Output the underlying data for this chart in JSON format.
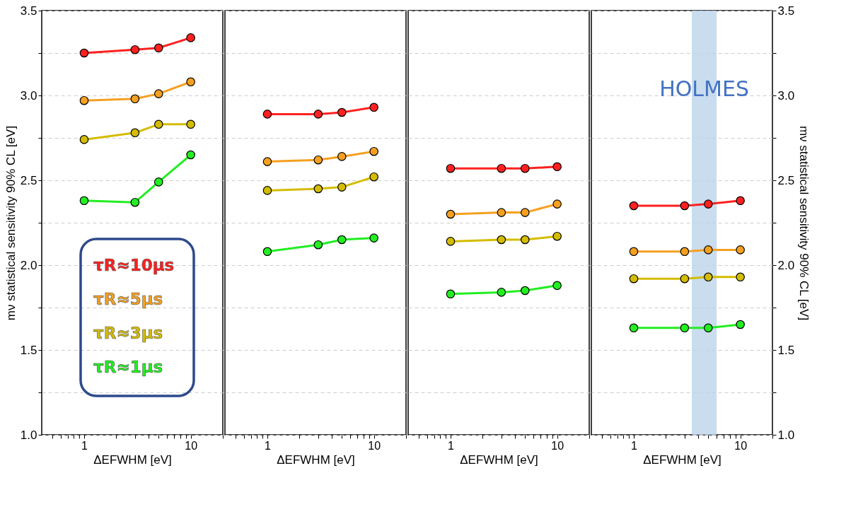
{
  "chart_data": [
    {
      "type": "line",
      "xlabel": "ΔEFWHM [eV]",
      "ylabel": "mν statistical sensitivity 90% CL [eV]",
      "x": [
        1,
        3,
        5,
        10
      ],
      "xlim": [
        0.4,
        20
      ],
      "log": "x",
      "xticks": [
        {
          "value": 0.5,
          "label": null
        },
        {
          "value": 0.6,
          "label": null
        },
        {
          "value": 0.7,
          "label": null
        },
        {
          "value": 0.8,
          "label": null
        },
        {
          "value": 0.9,
          "label": null
        },
        1,
        {
          "value": 2,
          "label": null
        },
        {
          "value": 3,
          "label": null
        },
        {
          "value": 4,
          "label": null
        },
        {
          "value": 5,
          "label": null
        },
        {
          "value": 6,
          "label": null
        },
        {
          "value": 7,
          "label": null
        },
        {
          "value": 8,
          "label": null
        },
        {
          "value": 9,
          "label": null
        },
        10,
        {
          "value": 20,
          "label": null
        }
      ],
      "ylim": [
        1.0,
        3.5
      ],
      "yticks": [
        {
          "value": 1.0,
          "label": "1.0"
        },
        {
          "value": 1.25,
          "label": null
        },
        1.5,
        {
          "value": 1.75,
          "label": null
        },
        {
          "value": 2.0,
          "label": "2.0"
        },
        {
          "value": 2.25,
          "label": null
        },
        2.5,
        {
          "value": 2.75,
          "label": null
        },
        {
          "value": 3.0,
          "label": "3.0"
        },
        {
          "value": 3.25,
          "label": null
        },
        3.5
      ],
      "grid": "y",
      "marker": "circle",
      "line_style": "solid",
      "legend": "bottom left",
      "series": [
        {
          "name": "τR≈10μs",
          "color": "#ff2020",
          "values": [
            3.25,
            3.27,
            3.28,
            3.34
          ]
        },
        {
          "name": "τR≈5μs",
          "color": "#f5a020",
          "values": [
            2.97,
            2.98,
            3.01,
            3.08
          ]
        },
        {
          "name": "τR≈3μs",
          "color": "#d4bc00",
          "values": [
            2.74,
            2.78,
            2.83,
            2.83
          ]
        },
        {
          "name": "τR≈1μs",
          "color": "#22ee22",
          "values": [
            2.38,
            2.37,
            2.49,
            2.65
          ]
        }
      ]
    },
    {
      "type": "line",
      "xlabel": "ΔEFWHM [eV]",
      "x": [
        1,
        3,
        5,
        10
      ],
      "xlim": [
        0.4,
        20
      ],
      "log": "x",
      "xticks": [
        {
          "value": 0.5,
          "label": null
        },
        {
          "value": 0.6,
          "label": null
        },
        {
          "value": 0.7,
          "label": null
        },
        {
          "value": 0.8,
          "label": null
        },
        {
          "value": 0.9,
          "label": null
        },
        1,
        {
          "value": 2,
          "label": null
        },
        {
          "value": 3,
          "label": null
        },
        {
          "value": 4,
          "label": null
        },
        {
          "value": 5,
          "label": null
        },
        {
          "value": 6,
          "label": null
        },
        {
          "value": 7,
          "label": null
        },
        {
          "value": 8,
          "label": null
        },
        {
          "value": 9,
          "label": null
        },
        10,
        {
          "value": 20,
          "label": null
        }
      ],
      "ylim": [
        1.0,
        3.5
      ],
      "yticks": [
        1.0,
        1.25,
        1.5,
        1.75,
        2.0,
        2.25,
        2.5,
        2.75,
        3.0,
        3.25,
        3.5
      ],
      "tick_labels": "x",
      "grid": "y",
      "marker": "circle",
      "line_style": "solid",
      "series": [
        {
          "color": "#ff2020",
          "values": [
            2.89,
            2.89,
            2.9,
            2.93
          ]
        },
        {
          "color": "#f5a020",
          "values": [
            2.61,
            2.62,
            2.64,
            2.67
          ]
        },
        {
          "color": "#d4bc00",
          "values": [
            2.44,
            2.45,
            2.46,
            2.52
          ]
        },
        {
          "color": "#22ee22",
          "values": [
            2.08,
            2.12,
            2.15,
            2.16
          ]
        }
      ]
    },
    {
      "type": "line",
      "xlabel": "ΔEFWHM [eV]",
      "x": [
        1,
        3,
        5,
        10
      ],
      "xlim": [
        0.4,
        20
      ],
      "log": "x",
      "xticks": [
        {
          "value": 0.5,
          "label": null
        },
        {
          "value": 0.6,
          "label": null
        },
        {
          "value": 0.7,
          "label": null
        },
        {
          "value": 0.8,
          "label": null
        },
        {
          "value": 0.9,
          "label": null
        },
        1,
        {
          "value": 2,
          "label": null
        },
        {
          "value": 3,
          "label": null
        },
        {
          "value": 4,
          "label": null
        },
        {
          "value": 5,
          "label": null
        },
        {
          "value": 6,
          "label": null
        },
        {
          "value": 7,
          "label": null
        },
        {
          "value": 8,
          "label": null
        },
        {
          "value": 9,
          "label": null
        },
        10,
        {
          "value": 20,
          "label": null
        }
      ],
      "ylim": [
        1.0,
        3.5
      ],
      "yticks": [
        1.0,
        1.25,
        1.5,
        1.75,
        2.0,
        2.25,
        2.5,
        2.75,
        3.0,
        3.25,
        3.5
      ],
      "tick_labels": "x",
      "grid": "y",
      "marker": "circle",
      "line_style": "solid",
      "series": [
        {
          "color": "#ff2020",
          "values": [
            2.57,
            2.57,
            2.57,
            2.58
          ]
        },
        {
          "color": "#f5a020",
          "values": [
            2.3,
            2.31,
            2.31,
            2.36
          ]
        },
        {
          "color": "#d4bc00",
          "values": [
            2.14,
            2.15,
            2.15,
            2.17
          ]
        },
        {
          "color": "#22ee22",
          "values": [
            1.83,
            1.84,
            1.85,
            1.88
          ]
        }
      ]
    },
    {
      "type": "line",
      "xlabel": "ΔEFWHM [eV]",
      "y2label": "mν statistical sensitivity 90% CL [eV]",
      "x": [
        1,
        3,
        5,
        10
      ],
      "xlim": [
        0.4,
        20
      ],
      "log": "x",
      "xticks": [
        {
          "value": 0.5,
          "label": null
        },
        {
          "value": 0.6,
          "label": null
        },
        {
          "value": 0.7,
          "label": null
        },
        {
          "value": 0.8,
          "label": null
        },
        {
          "value": 0.9,
          "label": null
        },
        1,
        {
          "value": 2,
          "label": null
        },
        {
          "value": 3,
          "label": null
        },
        {
          "value": 4,
          "label": null
        },
        {
          "value": 5,
          "label": null
        },
        {
          "value": 6,
          "label": null
        },
        {
          "value": 7,
          "label": null
        },
        {
          "value": 8,
          "label": null
        },
        {
          "value": 9,
          "label": null
        },
        10,
        {
          "value": 20,
          "label": null
        }
      ],
      "y2lim": [
        1.0,
        3.5
      ],
      "y2ticks": [
        {
          "value": 1.0,
          "label": "1.0"
        },
        {
          "value": 1.25,
          "label": null
        },
        1.5,
        {
          "value": 1.75,
          "label": null
        },
        {
          "value": 2.0,
          "label": "2.0"
        },
        {
          "value": 2.25,
          "label": null
        },
        2.5,
        {
          "value": 2.75,
          "label": null
        },
        {
          "value": 3.0,
          "label": "3.0"
        },
        {
          "value": 3.25,
          "label": null
        },
        3.5
      ],
      "grid": "y",
      "marker": "circle",
      "line_style": "solid",
      "bands": [
        {
          "axis": "x",
          "from": 3.5,
          "to": 6,
          "label": "HOLMES",
          "color": "#bcd4ea"
        }
      ],
      "series": [
        {
          "color": "#ff2020",
          "values": [
            2.35,
            2.35,
            2.36,
            2.38
          ],
          "axis": "y2"
        },
        {
          "color": "#f5a020",
          "values": [
            2.08,
            2.08,
            2.09,
            2.09
          ],
          "axis": "y2"
        },
        {
          "color": "#d4bc00",
          "values": [
            1.92,
            1.92,
            1.93,
            1.93
          ],
          "axis": "y2"
        },
        {
          "color": "#22ee22",
          "values": [
            1.63,
            1.63,
            1.63,
            1.65
          ],
          "axis": "y2"
        }
      ]
    }
  ]
}
